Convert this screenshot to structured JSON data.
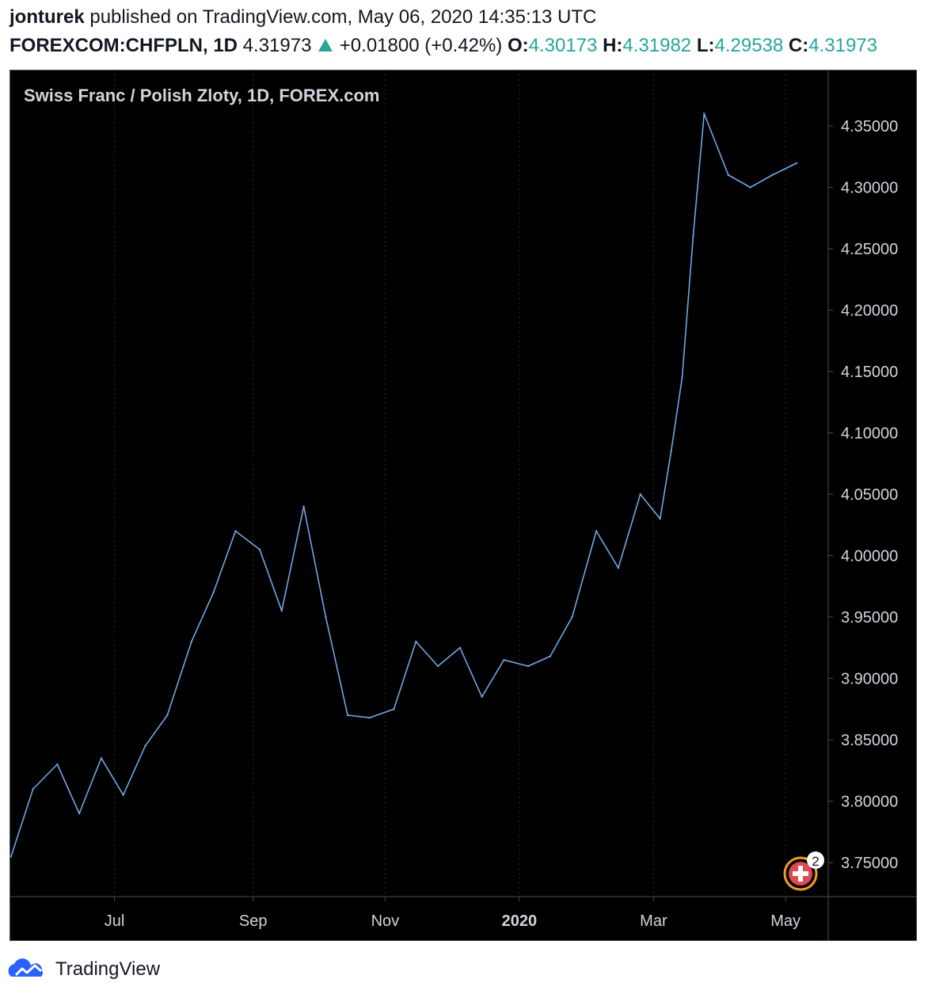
{
  "header": {
    "user": "jonturek",
    "published_text": "published on TradingView.com, May 06, 2020 14:35:13 UTC",
    "symbol": "FOREXCOM:CHFPLN, 1D",
    "last": "4.31973",
    "change": "+0.01800 (+0.42%)",
    "o_label": "O:",
    "o": "4.30173",
    "h_label": "H:",
    "h": "4.31982",
    "l_label": "L:",
    "l": "4.29538",
    "c_label": "C:",
    "c": "4.31973"
  },
  "footer": {
    "brand": "TradingView"
  },
  "badge": {
    "count": "2"
  },
  "chart_data": {
    "type": "line",
    "title": "Swiss Franc / Polish Zloty, 1D, FOREX.com",
    "xlabel": "",
    "ylabel": "",
    "ylim": [
      3.72,
      4.37
    ],
    "yticks": [
      "4.35000",
      "4.30000",
      "4.25000",
      "4.20000",
      "4.15000",
      "4.10000",
      "4.05000",
      "4.00000",
      "3.95000",
      "3.90000",
      "3.85000",
      "3.80000",
      "3.75000"
    ],
    "xticks": [
      {
        "label": "Jul",
        "x": "2019-07-01",
        "bold": false
      },
      {
        "label": "Sep",
        "x": "2019-09-02",
        "bold": false
      },
      {
        "label": "Nov",
        "x": "2019-11-01",
        "bold": false
      },
      {
        "label": "2020",
        "x": "2020-01-01",
        "bold": true
      },
      {
        "label": "Mar",
        "x": "2020-03-02",
        "bold": false
      },
      {
        "label": "May",
        "x": "2020-05-01",
        "bold": false
      }
    ],
    "grid": "vertical dotted",
    "background": "#000000",
    "line_color": "#6fa8e6",
    "text_color": "#d1d4dc",
    "series": [
      {
        "x": [
          "2019-05-15",
          "2019-05-25",
          "2019-06-05",
          "2019-06-15",
          "2019-06-25",
          "2019-07-05",
          "2019-07-15",
          "2019-07-25",
          "2019-08-05",
          "2019-08-15",
          "2019-08-25",
          "2019-09-05",
          "2019-09-15",
          "2019-09-25",
          "2019-10-05",
          "2019-10-15",
          "2019-10-25",
          "2019-11-05",
          "2019-11-15",
          "2019-11-25",
          "2019-12-05",
          "2019-12-15",
          "2019-12-25",
          "2020-01-05",
          "2020-01-15",
          "2020-01-25",
          "2020-02-05",
          "2020-02-15",
          "2020-02-25",
          "2020-03-05",
          "2020-03-10",
          "2020-03-15",
          "2020-03-20",
          "2020-03-25",
          "2020-04-05",
          "2020-04-15",
          "2020-04-25",
          "2020-05-06"
        ],
        "y": [
          3.755,
          3.81,
          3.83,
          3.79,
          3.835,
          3.805,
          3.845,
          3.87,
          3.93,
          3.97,
          4.02,
          4.005,
          3.955,
          4.04,
          3.95,
          3.87,
          3.868,
          3.875,
          3.93,
          3.91,
          3.925,
          3.885,
          3.915,
          3.91,
          3.918,
          3.95,
          4.02,
          3.99,
          4.05,
          4.03,
          4.085,
          4.145,
          4.26,
          4.36,
          4.31,
          4.3,
          4.31,
          4.3197
        ]
      }
    ]
  }
}
